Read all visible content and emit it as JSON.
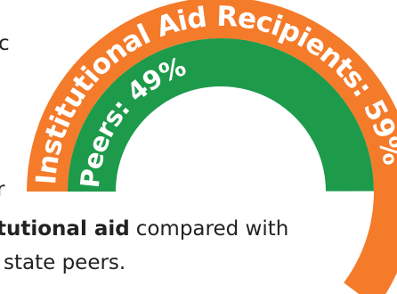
{
  "chart_data": {
    "type": "radial_bar",
    "categories": [
      "Institutional Aid Recipients: 59%",
      "Peers: 49%"
    ],
    "values": [
      59,
      49
    ],
    "colors": [
      "#f47b2a",
      "#1e9a4b"
    ]
  },
  "fragments": [
    {
      "text": "c"
    },
    {
      "text": "r"
    },
    {
      "text": "tutional aid"
    },
    {
      "text": "compared with"
    },
    {
      "text": "state peers."
    }
  ]
}
